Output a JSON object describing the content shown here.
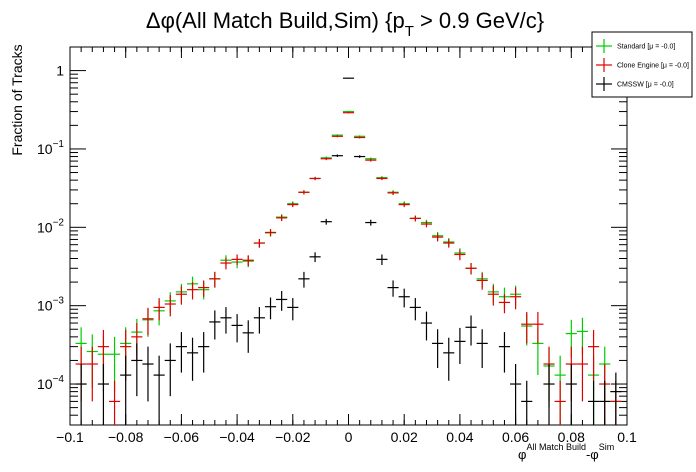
{
  "chart_data": {
    "type": "scatter",
    "title_parts": [
      "Δφ(All Match Build,Sim) {p",
      "T",
      " > 0.9 GeV/c}"
    ],
    "ylabel": "Fraction of Tracks",
    "xlabel_parts": [
      "φ",
      "All Match Build",
      "-φ",
      "Sim"
    ],
    "xlim": [
      -0.1,
      0.1
    ],
    "ylim": [
      3e-05,
      2
    ],
    "yscale": "log",
    "x_ticks": [
      -0.1,
      -0.08,
      -0.06,
      -0.04,
      -0.02,
      0,
      0.02,
      0.04,
      0.06,
      0.08,
      0.1
    ],
    "x_tick_labels": [
      "−0.1",
      "−0.08",
      "−0.06",
      "−0.04",
      "−0.02",
      "0",
      "0.02",
      "0.04",
      "0.06",
      "0.08",
      "0.1"
    ],
    "y_ticks": [
      {
        "value": 1,
        "base": "1",
        "exp": ""
      },
      {
        "value": 0.1,
        "base": "10",
        "exp": "−1"
      },
      {
        "value": 0.01,
        "base": "10",
        "exp": "−2"
      },
      {
        "value": 0.001,
        "base": "10",
        "exp": "−3"
      },
      {
        "value": 0.0001,
        "base": "10",
        "exp": "−4"
      }
    ],
    "legend": {
      "placement": "top-right"
    },
    "bin_halfwidth": 0.002,
    "series": [
      {
        "name": "Standard",
        "stat": "[μ = -0.0]",
        "color": "#00cc00",
        "points": [
          [
            -0.096,
            0.00033,
            0.0002
          ],
          [
            -0.092,
            0.00026,
            0.00017
          ],
          [
            -0.088,
            0.00024,
            0.00016
          ],
          [
            -0.084,
            0.00024,
            0.00016
          ],
          [
            -0.08,
            0.00033,
            0.0002
          ],
          [
            -0.076,
            0.00046,
            0.00022
          ],
          [
            -0.072,
            0.00066,
            0.00026
          ],
          [
            -0.068,
            0.00086,
            0.0003
          ],
          [
            -0.064,
            0.00115,
            0.00034
          ],
          [
            -0.06,
            0.0015,
            0.0004
          ],
          [
            -0.056,
            0.0019,
            0.00045
          ],
          [
            -0.052,
            0.0016,
            0.0004
          ],
          [
            -0.048,
            0.0022,
            0.0005
          ],
          [
            -0.044,
            0.0038,
            0.0006
          ],
          [
            -0.04,
            0.0036,
            0.0006
          ],
          [
            -0.036,
            0.0037,
            0.0006
          ],
          [
            -0.032,
            0.0063,
            0.0008
          ],
          [
            -0.028,
            0.0085,
            0.0009
          ],
          [
            -0.024,
            0.0135,
            0.0012
          ],
          [
            -0.02,
            0.02,
            0.0014
          ],
          [
            -0.016,
            0.028,
            0.0017
          ],
          [
            -0.012,
            0.042,
            0.002
          ],
          [
            -0.008,
            0.077,
            0.003
          ],
          [
            -0.004,
            0.15,
            0.004
          ],
          [
            0,
            0.3,
            0.006
          ],
          [
            0.004,
            0.145,
            0.004
          ],
          [
            0.008,
            0.075,
            0.003
          ],
          [
            0.012,
            0.043,
            0.002
          ],
          [
            0.016,
            0.028,
            0.0017
          ],
          [
            0.02,
            0.02,
            0.0014
          ],
          [
            0.024,
            0.013,
            0.0011
          ],
          [
            0.028,
            0.0115,
            0.001
          ],
          [
            0.032,
            0.0078,
            0.0009
          ],
          [
            0.036,
            0.0065,
            0.0008
          ],
          [
            0.04,
            0.0047,
            0.0007
          ],
          [
            0.044,
            0.003,
            0.0005
          ],
          [
            0.048,
            0.0022,
            0.0005
          ],
          [
            0.052,
            0.0015,
            0.0004
          ],
          [
            0.056,
            0.0013,
            0.0004
          ],
          [
            0.06,
            0.0014,
            0.0004
          ],
          [
            0.064,
            0.00055,
            0.00024
          ],
          [
            0.068,
            0.00033,
            0.0002
          ],
          [
            0.072,
            0.00017,
            0.00012
          ],
          [
            0.076,
            0.00013,
            0.0001
          ],
          [
            0.08,
            0.00044,
            0.00022
          ],
          [
            0.084,
            0.00047,
            0.00023
          ],
          [
            0.088,
            0.00013,
            0.0001
          ],
          [
            0.092,
            0.00018,
            0.00012
          ],
          [
            0.096,
            6e-05,
            5e-05
          ]
        ]
      },
      {
        "name": "Clone Engine",
        "stat": "[μ = -0.0]",
        "color": "#e00000",
        "points": [
          [
            -0.096,
            0.00018,
            0.00012
          ],
          [
            -0.092,
            0.00018,
            0.00012
          ],
          [
            -0.088,
            0.0003,
            0.00019
          ],
          [
            -0.084,
            6e-05,
            5e-05
          ],
          [
            -0.08,
            0.0003,
            0.00019
          ],
          [
            -0.076,
            0.0004,
            0.0002
          ],
          [
            -0.072,
            0.00068,
            0.00026
          ],
          [
            -0.068,
            0.00095,
            0.0003
          ],
          [
            -0.064,
            0.00105,
            0.00032
          ],
          [
            -0.06,
            0.0014,
            0.00037
          ],
          [
            -0.056,
            0.0016,
            0.0004
          ],
          [
            -0.052,
            0.0017,
            0.0004
          ],
          [
            -0.048,
            0.0022,
            0.0005
          ],
          [
            -0.044,
            0.0035,
            0.0006
          ],
          [
            -0.04,
            0.0039,
            0.0006
          ],
          [
            -0.036,
            0.0038,
            0.0006
          ],
          [
            -0.032,
            0.0063,
            0.0008
          ],
          [
            -0.028,
            0.0086,
            0.0009
          ],
          [
            -0.024,
            0.0132,
            0.0012
          ],
          [
            -0.02,
            0.0195,
            0.0014
          ],
          [
            -0.016,
            0.028,
            0.0017
          ],
          [
            -0.012,
            0.042,
            0.002
          ],
          [
            -0.008,
            0.075,
            0.003
          ],
          [
            -0.004,
            0.145,
            0.004
          ],
          [
            0,
            0.29,
            0.006
          ],
          [
            0.004,
            0.14,
            0.004
          ],
          [
            0.008,
            0.072,
            0.003
          ],
          [
            0.012,
            0.042,
            0.002
          ],
          [
            0.016,
            0.0275,
            0.0017
          ],
          [
            0.02,
            0.0195,
            0.0014
          ],
          [
            0.024,
            0.013,
            0.0011
          ],
          [
            0.028,
            0.011,
            0.001
          ],
          [
            0.032,
            0.0075,
            0.0009
          ],
          [
            0.036,
            0.0063,
            0.0008
          ],
          [
            0.04,
            0.0045,
            0.0007
          ],
          [
            0.044,
            0.003,
            0.0005
          ],
          [
            0.048,
            0.0021,
            0.0005
          ],
          [
            0.052,
            0.0014,
            0.0004
          ],
          [
            0.056,
            0.0011,
            0.0003
          ],
          [
            0.06,
            0.0013,
            0.0004
          ],
          [
            0.064,
            0.00058,
            0.00025
          ],
          [
            0.068,
            0.00058,
            0.00025
          ],
          [
            0.072,
            0.00018,
            0.00012
          ],
          [
            0.076,
            6e-05,
            5e-05
          ],
          [
            0.08,
            0.00018,
            0.00012
          ],
          [
            0.084,
            0.00018,
            0.00012
          ],
          [
            0.088,
            0.0003,
            0.00019
          ],
          [
            0.092,
            0.0001,
            8e-05
          ],
          [
            0.096,
            6e-05,
            5e-05
          ]
        ]
      },
      {
        "name": "CMSSW",
        "stat": "[μ = -0.0]",
        "color": "#000000",
        "points": [
          [
            -0.096,
            0.0001,
            8e-05
          ],
          [
            -0.088,
            0.0001,
            8e-05
          ],
          [
            -0.08,
            0.00013,
            0.0001
          ],
          [
            -0.076,
            0.0002,
            0.00013
          ],
          [
            -0.072,
            0.00018,
            0.00012
          ],
          [
            -0.068,
            0.00013,
            0.0001
          ],
          [
            -0.064,
            0.0002,
            0.00013
          ],
          [
            -0.06,
            0.0003,
            0.00016
          ],
          [
            -0.056,
            0.00025,
            0.00014
          ],
          [
            -0.052,
            0.0003,
            0.00016
          ],
          [
            -0.048,
            0.00062,
            0.00025
          ],
          [
            -0.044,
            0.0007,
            0.00026
          ],
          [
            -0.04,
            0.00056,
            0.00022
          ],
          [
            -0.036,
            0.00045,
            0.0002
          ],
          [
            -0.032,
            0.0007,
            0.00026
          ],
          [
            -0.028,
            0.00097,
            0.0003
          ],
          [
            -0.024,
            0.0012,
            0.00034
          ],
          [
            -0.02,
            0.00095,
            0.0003
          ],
          [
            -0.016,
            0.0022,
            0.0005
          ],
          [
            -0.012,
            0.0042,
            0.0006
          ],
          [
            -0.008,
            0.0118,
            0.001
          ],
          [
            -0.004,
            0.082,
            0.003
          ],
          [
            0,
            0.8,
            0.01
          ],
          [
            0.004,
            0.08,
            0.003
          ],
          [
            0.008,
            0.0115,
            0.001
          ],
          [
            0.012,
            0.0039,
            0.0006
          ],
          [
            0.016,
            0.0017,
            0.0004
          ],
          [
            0.02,
            0.0013,
            0.00035
          ],
          [
            0.024,
            0.00095,
            0.0003
          ],
          [
            0.028,
            0.0006,
            0.00024
          ],
          [
            0.032,
            0.00033,
            0.00017
          ],
          [
            0.036,
            0.00025,
            0.00014
          ],
          [
            0.04,
            0.00035,
            0.00017
          ],
          [
            0.044,
            0.00053,
            0.00022
          ],
          [
            0.048,
            0.00033,
            0.00017
          ],
          [
            0.056,
            0.0003,
            0.00016
          ],
          [
            0.06,
            0.0001,
            8e-05
          ],
          [
            0.064,
            6e-05,
            5e-05
          ],
          [
            0.072,
            0.0001,
            8e-05
          ],
          [
            0.08,
            0.0001,
            8e-05
          ],
          [
            0.088,
            6e-05,
            5e-05
          ],
          [
            0.092,
            6e-05,
            5e-05
          ],
          [
            0.096,
            8e-05,
            6e-05
          ]
        ]
      }
    ]
  }
}
